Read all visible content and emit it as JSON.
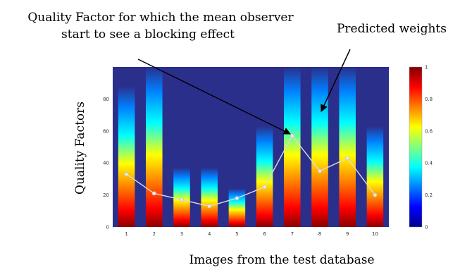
{
  "chart_data": {
    "type": "heatmap",
    "xlabel": "Images from the test database",
    "ylabel": "Quality Factors",
    "x_ticks": [
      "1",
      "2",
      "3",
      "4",
      "5",
      "6",
      "7",
      "8",
      "9",
      "10"
    ],
    "y_ticks": [
      "0",
      "20",
      "40",
      "60",
      "80"
    ],
    "ylim": [
      0,
      100
    ],
    "colorbar_ticks": [
      "0",
      "0.2",
      "0.4",
      "0.6",
      "0.8",
      "1"
    ],
    "colorbar_range": [
      0,
      1
    ],
    "column_top_quality": [
      88,
      100,
      37,
      37,
      24,
      63,
      100,
      100,
      100,
      63
    ],
    "series": [
      {
        "values": [
          33,
          21,
          17,
          13,
          18,
          25,
          57,
          35,
          43,
          20
        ]
      }
    ],
    "annotations": [
      {
        "text_lines": [
          "Quality Factor for which the mean observer",
          "start to see a blocking effect"
        ],
        "target": {
          "x": 7,
          "y": 57
        }
      },
      {
        "text_lines": [
          "Predicted weights"
        ],
        "target": {
          "x": 8,
          "y": 70
        }
      }
    ]
  }
}
